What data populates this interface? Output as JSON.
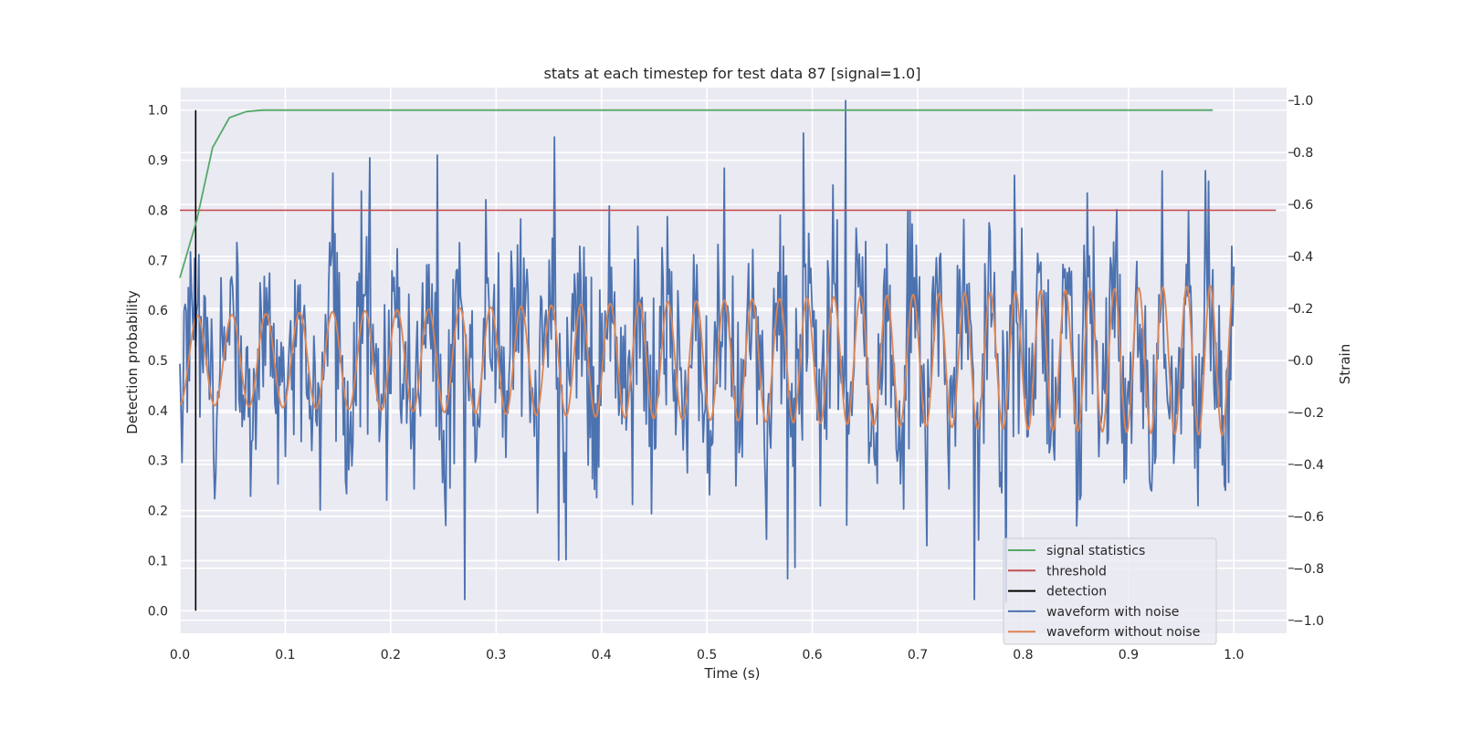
{
  "chart_data": {
    "type": "line",
    "title": "stats at each timestep for test data 87 [signal=1.0]",
    "xlabel": "Time (s)",
    "ylabel": "Detection probability",
    "ylabel_right": "Strain",
    "xlim": [
      0.0,
      1.05
    ],
    "ylim": [
      -0.045,
      1.045
    ],
    "ylim_right": [
      -1.05,
      1.05
    ],
    "x_ticks": [
      "0.0",
      "0.1",
      "0.2",
      "0.3",
      "0.4",
      "0.5",
      "0.6",
      "0.7",
      "0.8",
      "0.9",
      "1.0"
    ],
    "y_ticks": [
      "0.0",
      "0.1",
      "0.2",
      "0.3",
      "0.4",
      "0.5",
      "0.6",
      "0.7",
      "0.8",
      "0.9",
      "1.0"
    ],
    "y_ticks_right": [
      "−1.0",
      "−0.8",
      "−0.6",
      "−0.4",
      "−0.2",
      "0.0",
      "0.2",
      "0.4",
      "0.6",
      "0.8",
      "1.0"
    ],
    "grid": true,
    "legend_position": "bottom-right",
    "background_color": "#eaeaf2",
    "series": [
      {
        "name": "signal statistics",
        "axis": "left",
        "color": "#55a868",
        "x": [
          0.0,
          0.016,
          0.031,
          0.047,
          0.063,
          0.078,
          0.1,
          0.2,
          0.3,
          0.4,
          0.5,
          0.6,
          0.7,
          0.8,
          0.9,
          0.98
        ],
        "y": [
          0.665,
          0.78,
          0.925,
          0.985,
          0.997,
          1.0,
          1.0,
          1.0,
          1.0,
          1.0,
          1.0,
          1.0,
          1.0,
          1.0,
          1.0,
          1.0
        ]
      },
      {
        "name": "threshold",
        "axis": "left",
        "color": "#c44e52",
        "x": [
          0.0,
          1.04
        ],
        "y": [
          0.8,
          0.8
        ]
      },
      {
        "name": "detection",
        "axis": "left",
        "color": "#000000",
        "x": [
          0.015,
          0.015
        ],
        "y": [
          0.0,
          1.0
        ]
      },
      {
        "name": "waveform with noise",
        "axis": "right",
        "color": "#4c72b0",
        "sample_count": 1000,
        "x_range": [
          0.0,
          1.0
        ],
        "baseline_amplitude": 0.17,
        "noise_std": 0.2,
        "peaks": [
          {
            "x": 0.632,
            "y": 1.0
          },
          {
            "x": 0.355,
            "y": 0.86
          },
          {
            "x": 0.18,
            "y": 0.78
          },
          {
            "x": 0.244,
            "y": 0.79
          },
          {
            "x": 0.973,
            "y": 0.73
          },
          {
            "x": 0.27,
            "y": -0.92
          },
          {
            "x": 0.754,
            "y": -0.92
          },
          {
            "x": 0.577,
            "y": -0.84
          }
        ]
      },
      {
        "name": "waveform without noise",
        "axis": "right",
        "color": "#dd8452",
        "sample_count": 1500,
        "x_range": [
          0.0,
          1.0
        ],
        "amplitude_start": 0.17,
        "amplitude_end": 0.29,
        "frequency_hz_start": 30,
        "frequency_hz_end": 45,
        "initial_value": -0.17
      }
    ]
  }
}
